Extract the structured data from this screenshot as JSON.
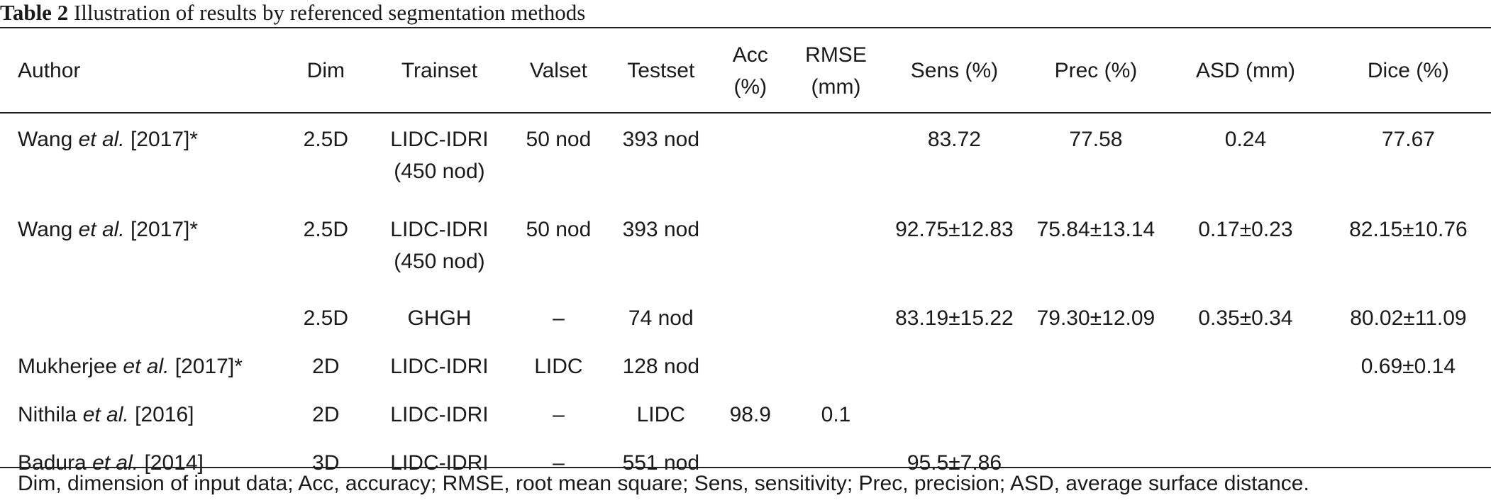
{
  "caption": {
    "label": "Table 2",
    "text": " Illustration of results by referenced segmentation methods"
  },
  "headers": {
    "author": "Author",
    "dim": "Dim",
    "trainset": "Trainset",
    "valset": "Valset",
    "testset": "Testset",
    "acc_1": "Acc",
    "acc_2": "(%)",
    "rmse_1": "RMSE",
    "rmse_2": "(mm)",
    "sens": "Sens (%)",
    "prec": "Prec (%)",
    "asd": "ASD (mm)",
    "dice": "Dice (%)"
  },
  "rows": [
    {
      "author_pre": "Wang ",
      "author_etal": "et al.",
      "author_post": " [2017]*",
      "dim": "2.5D",
      "trainset_1": "LIDC-IDRI",
      "trainset_2": "(450 nod)",
      "valset": "50 nod",
      "testset": "393 nod",
      "acc": "",
      "rmse": "",
      "sens": "83.72",
      "prec": "77.58",
      "asd": "0.24",
      "dice": "77.67"
    },
    {
      "author_pre": "Wang ",
      "author_etal": "et al.",
      "author_post": " [2017]*",
      "dim": "2.5D",
      "trainset_1": "LIDC-IDRI",
      "trainset_2": "(450 nod)",
      "valset": "50 nod",
      "testset": "393 nod",
      "acc": "",
      "rmse": "",
      "sens": "92.75±12.83",
      "prec": "75.84±13.14",
      "asd": "0.17±0.23",
      "dice": "82.15±10.76"
    },
    {
      "author_pre": "",
      "author_etal": "",
      "author_post": "",
      "dim": "2.5D",
      "trainset_1": "GHGH",
      "trainset_2": "",
      "valset": "–",
      "testset": "74 nod",
      "acc": "",
      "rmse": "",
      "sens": "83.19±15.22",
      "prec": "79.30±12.09",
      "asd": "0.35±0.34",
      "dice": "80.02±11.09"
    },
    {
      "author_pre": "Mukherjee ",
      "author_etal": "et al.",
      "author_post": " [2017]*",
      "dim": "2D",
      "trainset_1": "LIDC-IDRI",
      "trainset_2": "",
      "valset": "LIDC",
      "testset": "128 nod",
      "acc": "",
      "rmse": "",
      "sens": "",
      "prec": "",
      "asd": "",
      "dice": "0.69±0.14"
    },
    {
      "author_pre": "Nithila ",
      "author_etal": "et al.",
      "author_post": " [2016]",
      "dim": "2D",
      "trainset_1": "LIDC-IDRI",
      "trainset_2": "",
      "valset": "–",
      "testset": "LIDC",
      "acc": "98.9",
      "rmse": "0.1",
      "sens": "",
      "prec": "",
      "asd": "",
      "dice": ""
    },
    {
      "author_pre": "Badura ",
      "author_etal": "et al.",
      "author_post": " [2014]",
      "dim": "3D",
      "trainset_1": "LIDC-IDRI",
      "trainset_2": "",
      "valset": "–",
      "testset": "551 nod",
      "acc": "",
      "rmse": "",
      "sens": "95.5±7.86",
      "prec": "",
      "asd": "",
      "dice": ""
    }
  ],
  "footnote": "Dim, dimension of input data; Acc, accuracy; RMSE, root mean square; Sens, sensitivity; Prec, precision; ASD, average surface distance."
}
